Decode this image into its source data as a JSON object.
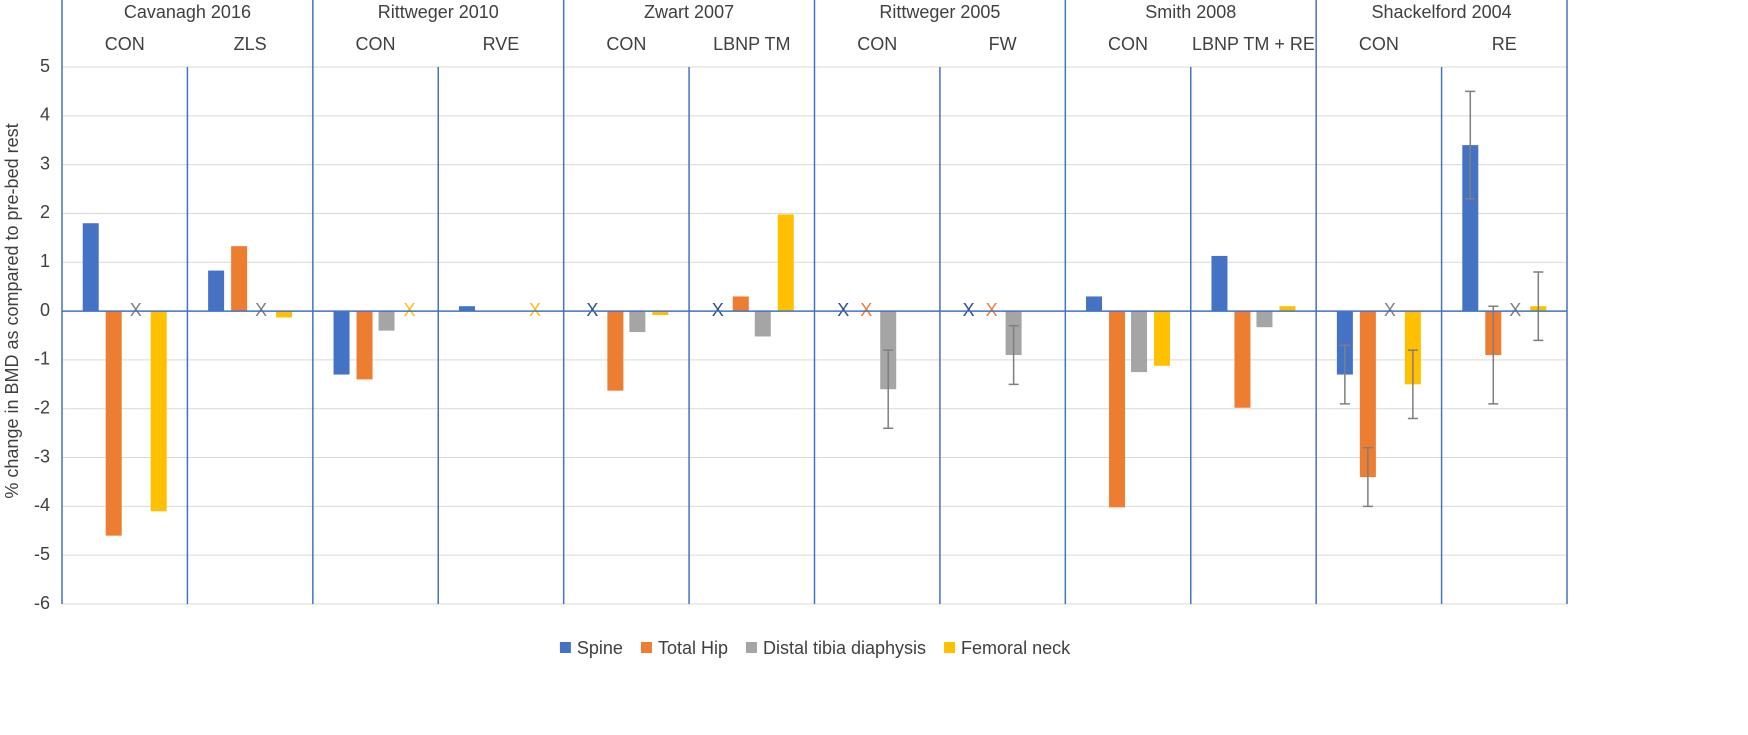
{
  "chart_data": {
    "type": "bar",
    "y_label": "% change in BMD as compared to pre-bed rest",
    "studies": [
      "Cavanagh 2016",
      "Rittweger 2010",
      "Zwart 2007",
      "Rittweger 2005",
      "Smith 2008",
      "Shackelford 2004"
    ],
    "categories": [
      "CON",
      "ZLS",
      "CON",
      "RVE",
      "CON",
      "LBNP TM",
      "CON",
      "FW",
      "CON",
      "LBNP TM + RE",
      "CON",
      "RE"
    ],
    "missing_marker": "X",
    "series": [
      {
        "name": "Spine",
        "color": "#4472c4",
        "values": [
          1.8,
          0.83,
          -1.3,
          0.1,
          null,
          null,
          null,
          null,
          0.3,
          1.13,
          -1.3,
          3.4
        ],
        "errors": [
          null,
          null,
          null,
          null,
          null,
          null,
          null,
          null,
          null,
          null,
          0.6,
          1.1
        ]
      },
      {
        "name": "Total Hip",
        "color": "#ed7d31",
        "values": [
          -4.6,
          1.33,
          -1.4,
          0,
          -1.63,
          0.3,
          null,
          null,
          -4.02,
          -1.98,
          -3.4,
          -0.9
        ],
        "errors": [
          null,
          null,
          null,
          null,
          null,
          null,
          null,
          null,
          null,
          null,
          0.6,
          1.0
        ]
      },
      {
        "name": "Distal tibia diaphysis",
        "color": "#a5a5a5",
        "values": [
          null,
          null,
          -0.4,
          0.01,
          -0.43,
          -0.52,
          -1.6,
          -0.9,
          -1.25,
          -0.33,
          null,
          null
        ],
        "errors": [
          null,
          null,
          null,
          null,
          null,
          null,
          0.8,
          0.6,
          null,
          null,
          null,
          null
        ]
      },
      {
        "name": "Femoral neck",
        "color": "#ffc000",
        "values": [
          -4.1,
          -0.13,
          null,
          null,
          -0.08,
          1.98,
          0,
          0,
          -1.12,
          0.1,
          -1.5,
          0.1
        ],
        "errors": [
          null,
          null,
          null,
          null,
          null,
          null,
          null,
          null,
          null,
          null,
          0.7,
          0.7
        ]
      }
    ],
    "ylim": [
      -6,
      5
    ],
    "yticks": [
      -6,
      -5,
      -4,
      -3,
      -2,
      -1,
      0,
      1,
      2,
      3,
      4,
      5
    ],
    "grid": true
  }
}
